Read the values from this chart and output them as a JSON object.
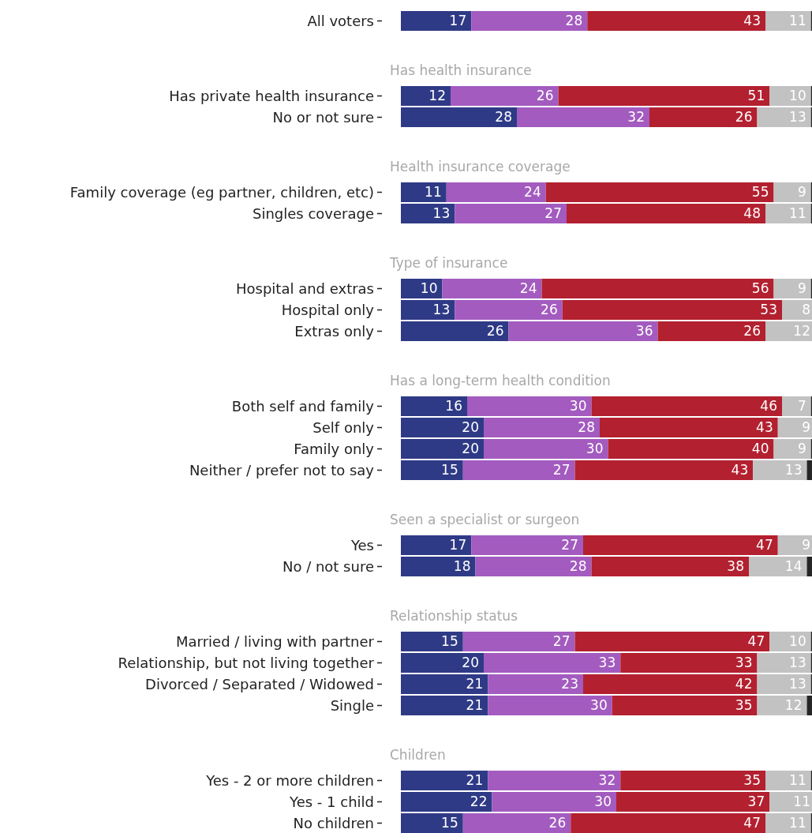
{
  "chart_data": [
    {
      "type": "bar",
      "orientation": "horizontal",
      "stacked": true,
      "xlim": [
        0,
        100
      ],
      "tick_labels": "y",
      "categories": [
        "All voters"
      ],
      "series": [
        {
          "color": "#2f3a86",
          "values": [
            17
          ],
          "value_labels": [
            "17"
          ]
        },
        {
          "color": "#a35bbf",
          "values": [
            28
          ],
          "value_labels": [
            "28"
          ]
        },
        {
          "color": "#b3202f",
          "values": [
            43
          ],
          "value_labels": [
            "43"
          ]
        },
        {
          "color": "#c2c2c2",
          "values": [
            11
          ],
          "value_labels": [
            "11"
          ]
        },
        {
          "color": "#262626",
          "values": [
            1
          ]
        }
      ]
    },
    {
      "type": "bar",
      "orientation": "horizontal",
      "stacked": true,
      "xlim": [
        0,
        100
      ],
      "tick_labels": "y",
      "title": "Has health insurance",
      "categories": [
        "Has private health insurance",
        "No or not sure"
      ],
      "series": [
        {
          "color": "#2f3a86",
          "values": [
            12,
            28
          ],
          "value_labels": [
            "12",
            "28"
          ]
        },
        {
          "color": "#a35bbf",
          "values": [
            26,
            32
          ],
          "value_labels": [
            "26",
            "32"
          ]
        },
        {
          "color": "#b3202f",
          "values": [
            51,
            26
          ],
          "value_labels": [
            "51",
            "26"
          ]
        },
        {
          "color": "#c2c2c2",
          "values": [
            10,
            13
          ],
          "value_labels": [
            "10",
            "13"
          ]
        },
        {
          "color": "#262626",
          "values": [
            1,
            1
          ]
        }
      ]
    },
    {
      "type": "bar",
      "orientation": "horizontal",
      "stacked": true,
      "xlim": [
        0,
        100
      ],
      "tick_labels": "y",
      "title": "Health insurance coverage",
      "categories": [
        "Family coverage (eg partner, children, etc)",
        "Singles coverage"
      ],
      "series": [
        {
          "color": "#2f3a86",
          "values": [
            11,
            13
          ],
          "value_labels": [
            "11",
            "13"
          ]
        },
        {
          "color": "#a35bbf",
          "values": [
            24,
            27
          ],
          "value_labels": [
            "24",
            "27"
          ]
        },
        {
          "color": "#b3202f",
          "values": [
            55,
            48
          ],
          "value_labels": [
            "55",
            "48"
          ]
        },
        {
          "color": "#c2c2c2",
          "values": [
            9,
            11
          ],
          "value_labels": [
            "9",
            "11"
          ]
        },
        {
          "color": "#262626",
          "values": [
            1,
            1
          ]
        }
      ]
    },
    {
      "type": "bar",
      "orientation": "horizontal",
      "stacked": true,
      "xlim": [
        0,
        100
      ],
      "tick_labels": "y",
      "title": "Type of insurance",
      "categories": [
        "Hospital and extras",
        "Hospital only",
        "Extras only"
      ],
      "series": [
        {
          "color": "#2f3a86",
          "values": [
            10,
            13,
            26
          ],
          "value_labels": [
            "10",
            "13",
            "26"
          ]
        },
        {
          "color": "#a35bbf",
          "values": [
            24,
            26,
            36
          ],
          "value_labels": [
            "24",
            "26",
            "36"
          ]
        },
        {
          "color": "#b3202f",
          "values": [
            56,
            53,
            26
          ],
          "value_labels": [
            "56",
            "53",
            "26"
          ]
        },
        {
          "color": "#c2c2c2",
          "values": [
            9,
            8,
            12
          ],
          "value_labels": [
            "9",
            "8",
            "12"
          ]
        },
        {
          "color": "#262626",
          "values": [
            1,
            0,
            0
          ]
        }
      ]
    },
    {
      "type": "bar",
      "orientation": "horizontal",
      "stacked": true,
      "xlim": [
        0,
        100
      ],
      "tick_labels": "y",
      "title": "Has a long-term health condition",
      "categories": [
        "Both self and family",
        "Self only",
        "Family only",
        "Neither / prefer not to say"
      ],
      "series": [
        {
          "color": "#2f3a86",
          "values": [
            16,
            20,
            20,
            15
          ],
          "value_labels": [
            "16",
            "20",
            "20",
            "15"
          ]
        },
        {
          "color": "#a35bbf",
          "values": [
            30,
            28,
            30,
            27
          ],
          "value_labels": [
            "30",
            "28",
            "30",
            "27"
          ]
        },
        {
          "color": "#b3202f",
          "values": [
            46,
            43,
            40,
            43
          ],
          "value_labels": [
            "46",
            "43",
            "40",
            "43"
          ]
        },
        {
          "color": "#c2c2c2",
          "values": [
            7,
            9,
            9,
            13
          ],
          "value_labels": [
            "7",
            "9",
            "9",
            "13"
          ]
        },
        {
          "color": "#262626",
          "values": [
            1,
            0,
            1,
            2
          ]
        }
      ]
    },
    {
      "type": "bar",
      "orientation": "horizontal",
      "stacked": true,
      "xlim": [
        0,
        100
      ],
      "tick_labels": "y",
      "title": "Seen a specialist or surgeon",
      "categories": [
        "Yes",
        "No / not sure"
      ],
      "series": [
        {
          "color": "#2f3a86",
          "values": [
            17,
            18
          ],
          "value_labels": [
            "17",
            "18"
          ]
        },
        {
          "color": "#a35bbf",
          "values": [
            27,
            28
          ],
          "value_labels": [
            "27",
            "28"
          ]
        },
        {
          "color": "#b3202f",
          "values": [
            47,
            38
          ],
          "value_labels": [
            "47",
            "38"
          ]
        },
        {
          "color": "#c2c2c2",
          "values": [
            9,
            14
          ],
          "value_labels": [
            "9",
            "14"
          ]
        },
        {
          "color": "#262626",
          "values": [
            0,
            2
          ]
        }
      ]
    },
    {
      "type": "bar",
      "orientation": "horizontal",
      "stacked": true,
      "xlim": [
        0,
        100
      ],
      "tick_labels": "y",
      "title": "Relationship status",
      "categories": [
        "Married / living with  partner",
        "Relationship, but not living together",
        "Divorced / Separated / Widowed",
        "Single"
      ],
      "series": [
        {
          "color": "#2f3a86",
          "values": [
            15,
            20,
            21,
            21
          ],
          "value_labels": [
            "15",
            "20",
            "21",
            "21"
          ]
        },
        {
          "color": "#a35bbf",
          "values": [
            27,
            33,
            23,
            30
          ],
          "value_labels": [
            "27",
            "33",
            "23",
            "30"
          ]
        },
        {
          "color": "#b3202f",
          "values": [
            47,
            33,
            42,
            35
          ],
          "value_labels": [
            "47",
            "33",
            "42",
            "35"
          ]
        },
        {
          "color": "#c2c2c2",
          "values": [
            10,
            13,
            13,
            12
          ],
          "value_labels": [
            "10",
            "13",
            "13",
            "12"
          ]
        },
        {
          "color": "#262626",
          "values": [
            1,
            1,
            1,
            2
          ]
        }
      ]
    },
    {
      "type": "bar",
      "orientation": "horizontal",
      "stacked": true,
      "xlim": [
        0,
        100
      ],
      "tick_labels": "y",
      "title": "Children",
      "categories": [
        "Yes - 2 or more children",
        "Yes - 1 child",
        "No children"
      ],
      "series": [
        {
          "color": "#2f3a86",
          "values": [
            21,
            22,
            15
          ],
          "value_labels": [
            "21",
            "22",
            "15"
          ]
        },
        {
          "color": "#a35bbf",
          "values": [
            32,
            30,
            26
          ],
          "value_labels": [
            "32",
            "30",
            "26"
          ]
        },
        {
          "color": "#b3202f",
          "values": [
            35,
            37,
            47
          ],
          "value_labels": [
            "35",
            "37",
            "47"
          ]
        },
        {
          "color": "#c2c2c2",
          "values": [
            11,
            11,
            11
          ],
          "value_labels": [
            "11",
            "11",
            "11"
          ]
        },
        {
          "color": "#262626",
          "values": [
            1,
            0,
            1
          ]
        }
      ]
    }
  ]
}
